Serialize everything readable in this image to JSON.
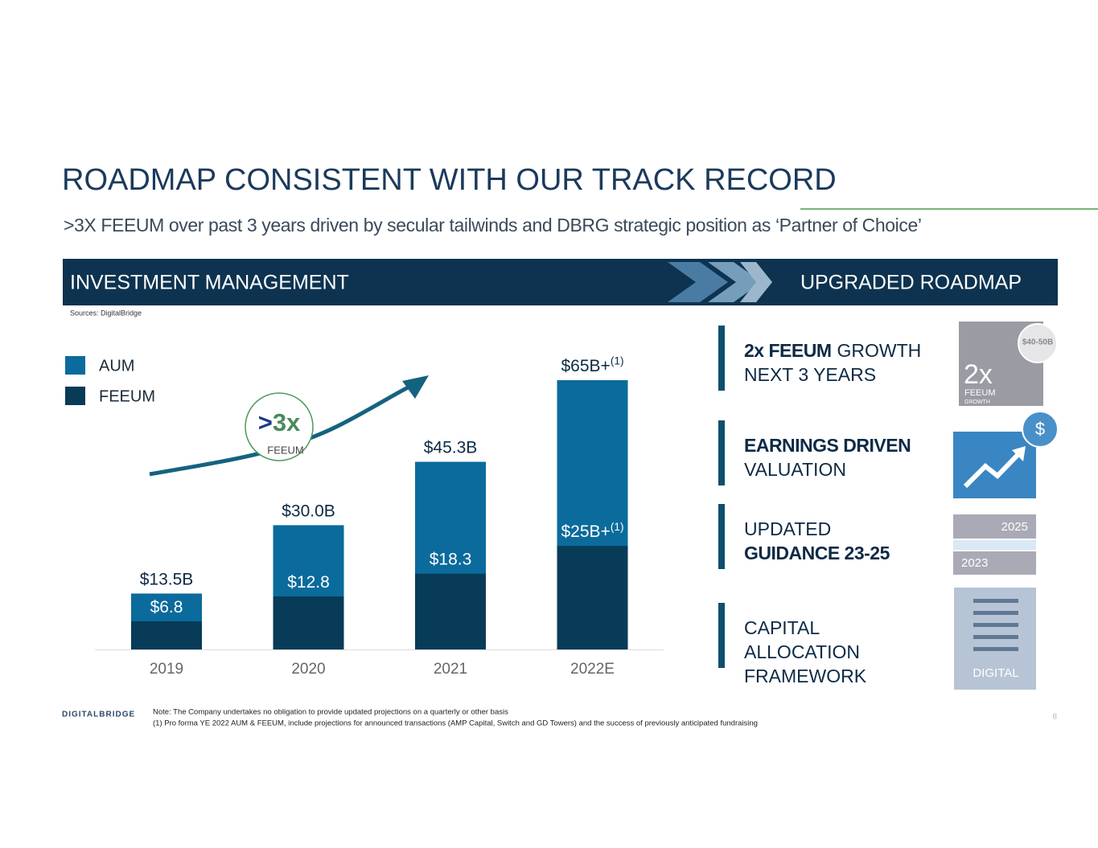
{
  "header": {
    "title": "ROADMAP CONSISTENT WITH OUR TRACK RECORD",
    "subtitle": ">3X FEEUM over past 3 years driven by secular tailwinds and DBRG strategic position as ‘Partner of Choice’"
  },
  "banner": {
    "left": "INVESTMENT MANAGEMENT",
    "right": "UPGRADED ROADMAP"
  },
  "sources": "Sources:  DigitalBridge",
  "chart_data": {
    "type": "bar",
    "overlap": true,
    "categories": [
      "2019",
      "2020",
      "2021",
      "2022E"
    ],
    "series": [
      {
        "name": "AUM",
        "color": "#0b6b9c",
        "values": [
          13.5,
          30.0,
          45.3,
          65
        ],
        "value_labels": [
          "$13.5B",
          "$30.0B",
          "$45.3B",
          "$65B+"
        ],
        "label_notes": [
          null,
          null,
          null,
          "(1)"
        ]
      },
      {
        "name": "FEEUM",
        "color": "#073b57",
        "values": [
          6.8,
          12.8,
          18.3,
          25
        ],
        "value_labels": [
          "$6.8",
          "$12.8",
          "$18.3",
          "$25B+"
        ],
        "label_notes": [
          null,
          null,
          null,
          "(1)"
        ]
      }
    ],
    "ylim": [
      0,
      65
    ],
    "annotation": {
      "symbol": ">",
      "multiple": "3x",
      "label": "FEEUM"
    }
  },
  "roadmap": [
    {
      "lines": [
        [
          {
            "text": "2x FEEUM",
            "bold": true
          },
          {
            "text": "GROWTH"
          }
        ],
        [
          {
            "text": "NEXT 3 YEARS"
          }
        ]
      ]
    },
    {
      "lines": [
        [
          {
            "text": "EARNINGS DRIVEN",
            "bold": true
          }
        ],
        [
          {
            "text": "VALUATION"
          }
        ]
      ]
    },
    {
      "lines": [
        [
          {
            "text": "UPDATED"
          }
        ],
        [
          {
            "text": "GUIDANCE 23-25",
            "bold": true
          }
        ]
      ]
    },
    {
      "lines": [
        [
          {
            "text": "CAPITAL"
          }
        ],
        [
          {
            "text": "ALLOCATION"
          }
        ],
        [
          {
            "text": "FRAMEWORK"
          }
        ]
      ]
    }
  ],
  "icons": {
    "badge": "$40-50B",
    "multiple": "2x",
    "multiple_label_1": "FEEUM",
    "multiple_label_2": "GROWTH",
    "dollar": "$",
    "year_end": "2025",
    "year_start": "2023",
    "digital": "DIGITAL"
  },
  "footer": {
    "logo": "DIGITALBRIDGE",
    "notes": [
      "Note: The Company undertakes no obligation to provide updated projections on a quarterly or other basis",
      "(1) Pro forma YE 2022 AUM & FEEUM, include projections for announced transactions (AMP Capital, Switch and GD Towers) and the success of previously anticipated fundraising"
    ],
    "page": "8"
  }
}
